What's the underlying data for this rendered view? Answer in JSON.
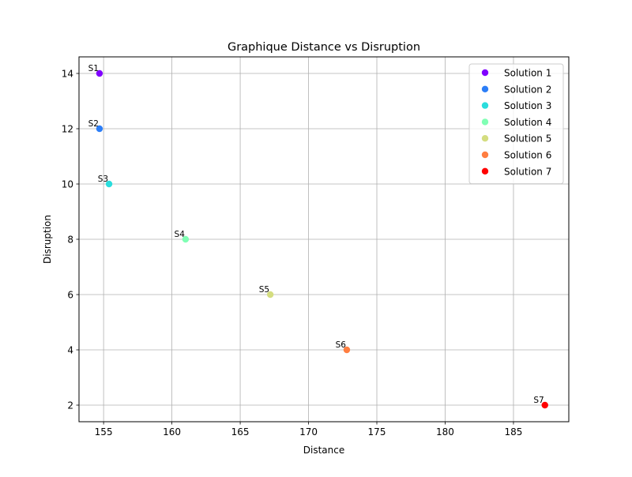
{
  "chart_data": {
    "type": "scatter",
    "title": "Graphique Distance vs Disruption",
    "xlabel": "Distance",
    "ylabel": "Disruption",
    "xlim": [
      153.2,
      189.05
    ],
    "ylim": [
      1.4,
      14.6
    ],
    "xticks": [
      155,
      160,
      165,
      170,
      175,
      180,
      185
    ],
    "yticks": [
      2,
      4,
      6,
      8,
      10,
      12,
      14
    ],
    "grid": true,
    "legend_position": "top-right",
    "series": [
      {
        "name": "Solution 1",
        "label": "S1",
        "color": "#8000ff",
        "x": 154.7,
        "y": 14
      },
      {
        "name": "Solution 2",
        "label": "S2",
        "color": "#2c7ef7",
        "x": 154.7,
        "y": 12
      },
      {
        "name": "Solution 3",
        "label": "S3",
        "color": "#2adddd",
        "x": 155.4,
        "y": 10
      },
      {
        "name": "Solution 4",
        "label": "S4",
        "color": "#80ffb4",
        "x": 161.0,
        "y": 8
      },
      {
        "name": "Solution 5",
        "label": "S5",
        "color": "#d4dd80",
        "x": 167.2,
        "y": 6
      },
      {
        "name": "Solution 6",
        "label": "S6",
        "color": "#ff7e41",
        "x": 172.8,
        "y": 4
      },
      {
        "name": "Solution 7",
        "label": "S7",
        "color": "#ff0000",
        "x": 187.3,
        "y": 2
      }
    ]
  }
}
